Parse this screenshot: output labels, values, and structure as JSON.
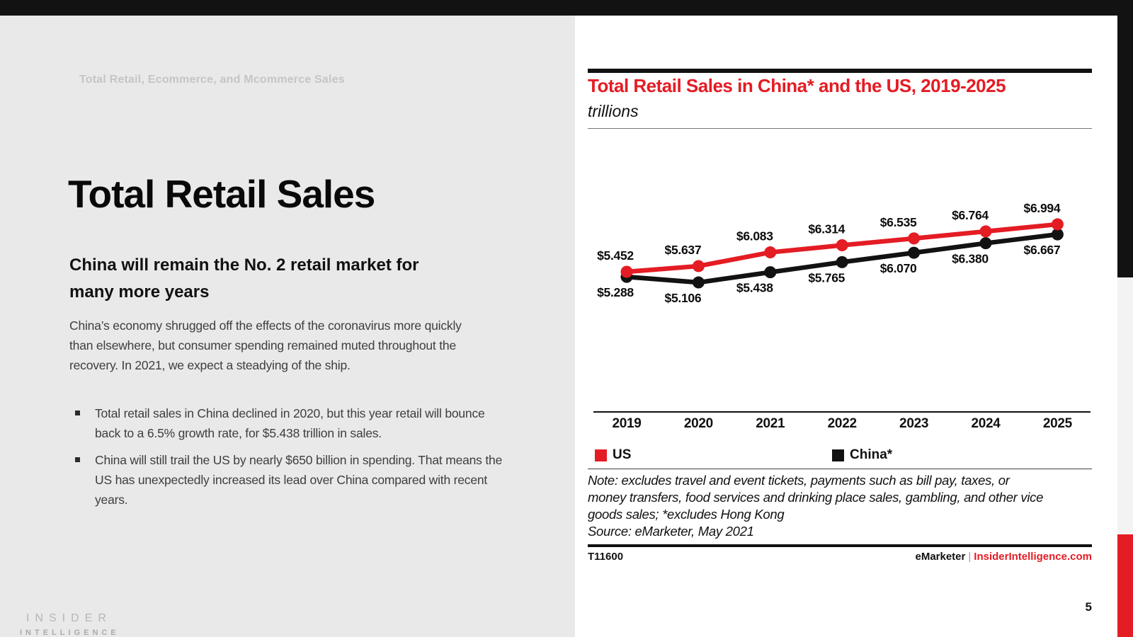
{
  "slide": {
    "eyebrow": "Total Retail, Ecommerce, and Mcommerce Sales",
    "title": "Total Retail Sales",
    "subtitle_lines": [
      "China will remain the No. 2 retail market for",
      "many more years"
    ],
    "paragraph": "China’s economy shrugged off the effects of the coronavirus more quickly than elsewhere, but consumer spending remained muted throughout the recovery. In 2021, we expect a steadying of the ship.",
    "bullets": [
      "Total retail sales in China declined in 2020, but this year retail will bounce back to a 6.5% growth rate, for $5.438 trillion in sales.",
      "China will still trail the US by nearly $650 billion in spending. That means the US has unexpectedly increased its lead over China compared with recent years."
    ],
    "logo": {
      "line1": "INSIDER",
      "line2": "INTELLIGENCE"
    },
    "page_number": "5"
  },
  "chart": {
    "title": "Total Retail Sales in China* and the US, 2019-2025",
    "unit_label": "trillions",
    "note_lines": [
      "Note: excludes travel and event tickets, payments such as bill pay, taxes, or",
      "money transfers, food services and drinking place sales, gambling, and other vice",
      "goods sales; *excludes Hong Kong"
    ],
    "source": "Source: eMarketer, May 2021",
    "footer": {
      "id": "T11600",
      "brand": "eMarketer",
      "separator": "|",
      "site": "InsiderIntelligence.com"
    }
  },
  "chart_data": {
    "type": "line",
    "title": "Total Retail Sales in China* and the US, 2019-2025",
    "unit": "trillions of US dollars",
    "categories": [
      "2019",
      "2020",
      "2021",
      "2022",
      "2023",
      "2024",
      "2025"
    ],
    "series": [
      {
        "name": "US",
        "color": "#e41c24",
        "values": [
          5.452,
          5.637,
          6.083,
          6.314,
          6.535,
          6.764,
          6.994
        ],
        "labels": [
          "$5.452",
          "$5.637",
          "$6.083",
          "$6.314",
          "$6.535",
          "$6.764",
          "$6.994"
        ]
      },
      {
        "name": "China*",
        "color": "#121212",
        "values": [
          5.288,
          5.106,
          5.438,
          5.765,
          6.07,
          6.38,
          6.667
        ],
        "labels": [
          "$5.288",
          "$5.106",
          "$5.438",
          "$5.765",
          "$6.070",
          "$6.380",
          "$6.667"
        ]
      }
    ],
    "ylim": [
      5.0,
      7.2
    ],
    "grid": false,
    "legend_position": "bottom",
    "data_labels": true
  },
  "colors": {
    "accent_red": "#e41c24",
    "bar_black": "#121212",
    "panel_gray": "#e9e9e9",
    "strip_light_gray": "#f3f3f3",
    "body_text": "#3e3e3e",
    "eyebrow_gray": "#c5c5c5"
  }
}
